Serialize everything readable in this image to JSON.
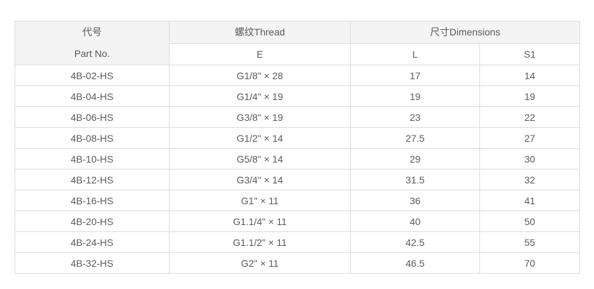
{
  "table": {
    "header": {
      "part_no_zh": "代号",
      "part_no_en": "Part No.",
      "thread_group": "螺纹Thread",
      "dimensions_group": "尺寸Dimensions",
      "col_e": "E",
      "col_l": "L",
      "col_s1": "S1"
    },
    "rows": [
      {
        "part_no": "4B-02-HS",
        "e": "G1/8\" × 28",
        "l": "17",
        "s1": "14"
      },
      {
        "part_no": "4B-04-HS",
        "e": "G1/4\" × 19",
        "l": "19",
        "s1": "19"
      },
      {
        "part_no": "4B-06-HS",
        "e": "G3/8\" × 19",
        "l": "23",
        "s1": "22"
      },
      {
        "part_no": "4B-08-HS",
        "e": "G1/2\" × 14",
        "l": "27.5",
        "s1": "27"
      },
      {
        "part_no": "4B-10-HS",
        "e": "G5/8\" × 14",
        "l": "29",
        "s1": "30"
      },
      {
        "part_no": "4B-12-HS",
        "e": "G3/4\" × 14",
        "l": "31.5",
        "s1": "32"
      },
      {
        "part_no": "4B-16-HS",
        "e": "G1\" × 11",
        "l": "36",
        "s1": "41"
      },
      {
        "part_no": "4B-20-HS",
        "e": "G1.1/4\" × 11",
        "l": "40",
        "s1": "50"
      },
      {
        "part_no": "4B-24-HS",
        "e": "G1.1/2\" × 11",
        "l": "42.5",
        "s1": "55"
      },
      {
        "part_no": "4B-32-HS",
        "e": "G2\" × 11",
        "l": "46.5",
        "s1": "70"
      }
    ],
    "colors": {
      "header_bg": "#f4f4f4",
      "border": "#dcdcdc",
      "text": "#5a5a5a",
      "page_bg": "#ffffff"
    }
  }
}
